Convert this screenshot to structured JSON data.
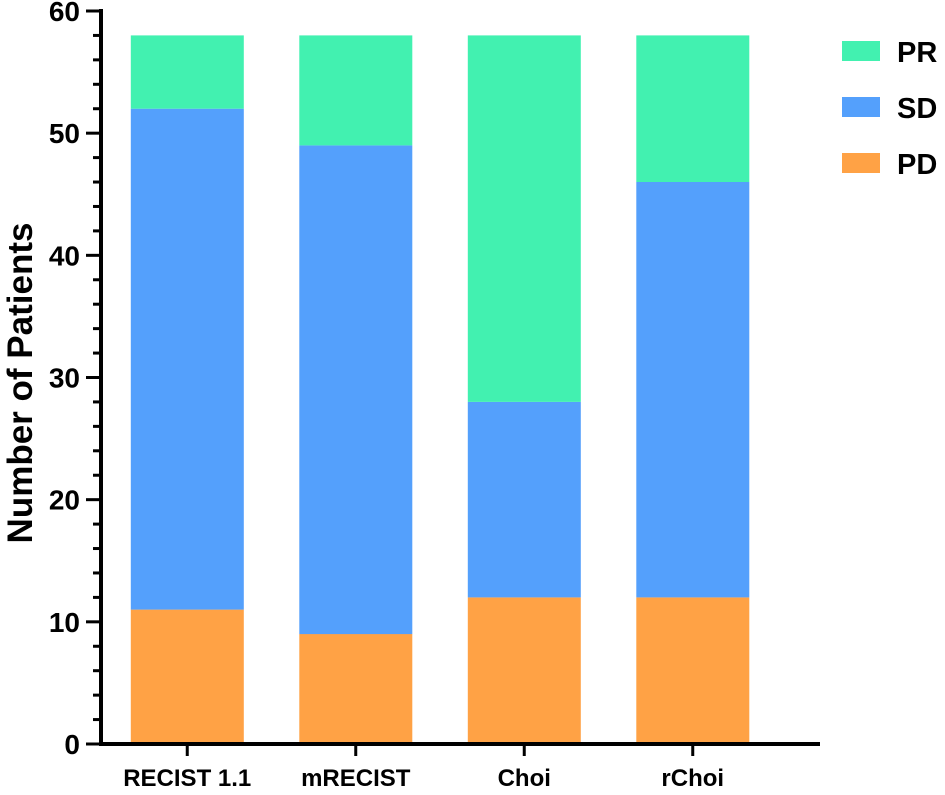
{
  "chart_data": {
    "type": "bar",
    "stacked": true,
    "title": "",
    "xlabel": "",
    "ylabel": "Number of Patients",
    "ylim": [
      0,
      60
    ],
    "y_major_ticks": [
      0,
      10,
      20,
      30,
      40,
      50,
      60
    ],
    "y_minor_step": 2,
    "grid": false,
    "legend_position": "top-right",
    "categories": [
      "RECIST 1.1",
      "mRECIST",
      "Choi",
      "rChoi"
    ],
    "series": [
      {
        "name": "PD",
        "color": "#ffa245",
        "values": [
          11,
          9,
          12,
          12
        ]
      },
      {
        "name": "SD",
        "color": "#54a0fc",
        "values": [
          41,
          40,
          16,
          34
        ]
      },
      {
        "name": "PR",
        "color": "#42f1b0",
        "values": [
          6,
          9,
          30,
          12
        ]
      }
    ],
    "legend_order": [
      "PR",
      "SD",
      "PD"
    ]
  }
}
